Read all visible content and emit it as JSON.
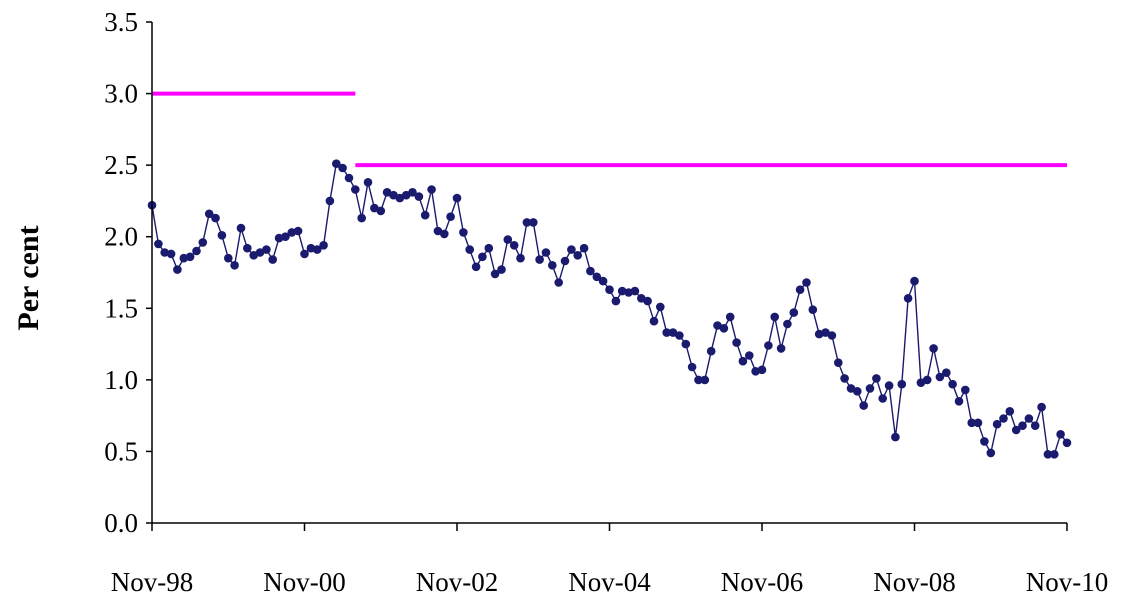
{
  "chart_data": {
    "type": "line",
    "title": "",
    "xlabel": "",
    "ylabel": "Per cent",
    "ylim": [
      0,
      3.5
    ],
    "yticks": [
      "0.0",
      "0.5",
      "1.0",
      "1.5",
      "2.0",
      "2.5",
      "3.0",
      "3.5"
    ],
    "xtick_labels": [
      "Nov-98",
      "Nov-00",
      "Nov-02",
      "Nov-04",
      "Nov-06",
      "Nov-08",
      "Nov-10"
    ],
    "x_start": "Nov-98",
    "grid": false,
    "legend": "none",
    "colors": {
      "series": "#1a1a6e",
      "target": "#ff00ff"
    },
    "series": [
      {
        "values": [
          2.22,
          1.95,
          1.89,
          1.88,
          1.77,
          1.85,
          1.86,
          1.9,
          1.96,
          2.16,
          2.13,
          2.01,
          1.85,
          1.8,
          2.06,
          1.92,
          1.87,
          1.89,
          1.91,
          1.84,
          1.99,
          2.0,
          2.03,
          2.04,
          1.88,
          1.92,
          1.91,
          1.94,
          2.25,
          2.51,
          2.48,
          2.41,
          2.33,
          2.13,
          2.38,
          2.2,
          2.18,
          2.31,
          2.29,
          2.27,
          2.29,
          2.31,
          2.28,
          2.15,
          2.33,
          2.04,
          2.02,
          2.14,
          2.27,
          2.03,
          1.91,
          1.79,
          1.86,
          1.92,
          1.74,
          1.77,
          1.98,
          1.94,
          1.85,
          2.1,
          2.1,
          1.84,
          1.89,
          1.8,
          1.68,
          1.83,
          1.91,
          1.87,
          1.92,
          1.76,
          1.72,
          1.69,
          1.63,
          1.55,
          1.62,
          1.61,
          1.62,
          1.57,
          1.55,
          1.41,
          1.51,
          1.33,
          1.33,
          1.31,
          1.25,
          1.09,
          1.0,
          1.0,
          1.2,
          1.38,
          1.36,
          1.44,
          1.26,
          1.13,
          1.17,
          1.06,
          1.07,
          1.24,
          1.44,
          1.22,
          1.39,
          1.47,
          1.63,
          1.68,
          1.49,
          1.32,
          1.33,
          1.31,
          1.12,
          1.01,
          0.94,
          0.92,
          0.82,
          0.94,
          1.01,
          0.87,
          0.96,
          0.6,
          0.97,
          1.57,
          1.69,
          0.98,
          1.0,
          1.22,
          1.02,
          1.05,
          0.97,
          0.85,
          0.93,
          0.7,
          0.7,
          0.57,
          0.49,
          0.69,
          0.73,
          0.78,
          0.65,
          0.68,
          0.73,
          0.68,
          0.81,
          0.48,
          0.48,
          0.62,
          0.56
        ]
      }
    ],
    "target_lines": [
      {
        "from": "Nov-98",
        "to": "Jul-01",
        "value": 3.0
      },
      {
        "from": "Jul-01",
        "to": "Nov-10",
        "value": 2.5
      }
    ]
  }
}
